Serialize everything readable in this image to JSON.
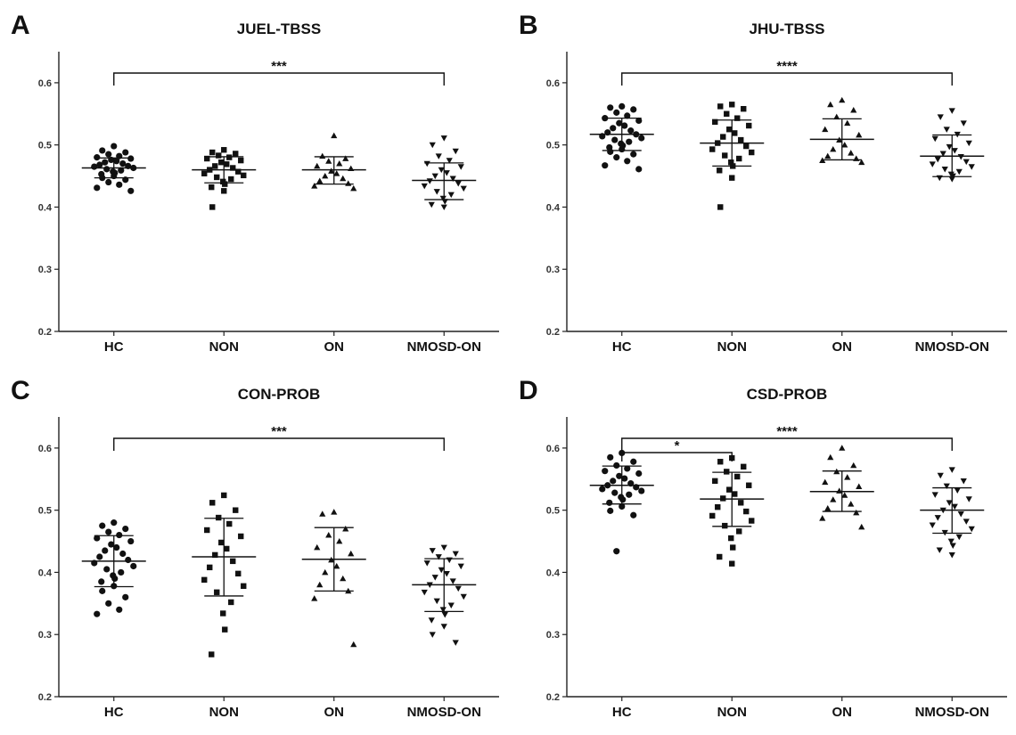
{
  "chart_data": [
    {
      "panel_letter": "A",
      "type": "scatter",
      "title": "JUEL-TBSS",
      "xlabel": "",
      "ylabel": "",
      "ylim": [
        0.2,
        0.65
      ],
      "yticks": [
        "0.2",
        "0.3",
        "0.4",
        "0.5",
        "0.6"
      ],
      "categories": [
        "HC",
        "NON",
        "ON",
        "NMOSD-ON"
      ],
      "markers": [
        "circle",
        "square",
        "triangle",
        "triangle-down"
      ],
      "groups": [
        {
          "name": "HC",
          "mean": 0.463,
          "sd_low": 0.447,
          "sd_high": 0.479,
          "values": [
            0.498,
            0.491,
            0.488,
            0.485,
            0.482,
            0.48,
            0.478,
            0.476,
            0.474,
            0.472,
            0.47,
            0.468,
            0.466,
            0.465,
            0.463,
            0.461,
            0.459,
            0.457,
            0.455,
            0.453,
            0.45,
            0.447,
            0.444,
            0.44,
            0.436,
            0.431,
            0.426
          ]
        },
        {
          "name": "NON",
          "mean": 0.46,
          "sd_low": 0.439,
          "sd_high": 0.481,
          "values": [
            0.492,
            0.488,
            0.486,
            0.483,
            0.48,
            0.478,
            0.475,
            0.472,
            0.469,
            0.466,
            0.463,
            0.46,
            0.457,
            0.454,
            0.451,
            0.448,
            0.445,
            0.441,
            0.437,
            0.432,
            0.426,
            0.4
          ]
        },
        {
          "name": "ON",
          "mean": 0.46,
          "sd_low": 0.437,
          "sd_high": 0.481,
          "values": [
            0.515,
            0.482,
            0.478,
            0.474,
            0.47,
            0.466,
            0.462,
            0.458,
            0.454,
            0.45,
            0.446,
            0.442,
            0.438,
            0.434,
            0.43
          ]
        },
        {
          "name": "NMOSD-ON",
          "mean": 0.443,
          "sd_low": 0.412,
          "sd_high": 0.471,
          "values": [
            0.511,
            0.5,
            0.49,
            0.482,
            0.475,
            0.47,
            0.465,
            0.46,
            0.455,
            0.45,
            0.446,
            0.442,
            0.438,
            0.434,
            0.43,
            0.425,
            0.42,
            0.414,
            0.409,
            0.404,
            0.4
          ]
        }
      ],
      "brackets": [
        {
          "from": "HC",
          "to": "NMOSD-ON",
          "label": "***"
        }
      ]
    },
    {
      "panel_letter": "B",
      "type": "scatter",
      "title": "JHU-TBSS",
      "xlabel": "",
      "ylabel": "",
      "ylim": [
        0.2,
        0.65
      ],
      "yticks": [
        "0.2",
        "0.3",
        "0.4",
        "0.5",
        "0.6"
      ],
      "categories": [
        "HC",
        "NON",
        "ON",
        "NMOSD-ON"
      ],
      "markers": [
        "circle",
        "square",
        "triangle",
        "triangle-down"
      ],
      "groups": [
        {
          "name": "HC",
          "mean": 0.517,
          "sd_low": 0.491,
          "sd_high": 0.543,
          "values": [
            0.562,
            0.56,
            0.557,
            0.552,
            0.547,
            0.543,
            0.539,
            0.535,
            0.531,
            0.527,
            0.523,
            0.52,
            0.517,
            0.514,
            0.511,
            0.508,
            0.505,
            0.502,
            0.499,
            0.496,
            0.493,
            0.489,
            0.485,
            0.48,
            0.474,
            0.467,
            0.461
          ]
        },
        {
          "name": "NON",
          "mean": 0.503,
          "sd_low": 0.466,
          "sd_high": 0.54,
          "values": [
            0.565,
            0.562,
            0.558,
            0.55,
            0.543,
            0.537,
            0.531,
            0.525,
            0.519,
            0.513,
            0.508,
            0.503,
            0.498,
            0.493,
            0.488,
            0.483,
            0.478,
            0.472,
            0.466,
            0.459,
            0.447,
            0.4
          ]
        },
        {
          "name": "ON",
          "mean": 0.509,
          "sd_low": 0.476,
          "sd_high": 0.542,
          "values": [
            0.572,
            0.565,
            0.556,
            0.545,
            0.535,
            0.525,
            0.516,
            0.508,
            0.5,
            0.493,
            0.487,
            0.482,
            0.478,
            0.475,
            0.472
          ]
        },
        {
          "name": "NMOSD-ON",
          "mean": 0.482,
          "sd_low": 0.449,
          "sd_high": 0.516,
          "values": [
            0.555,
            0.545,
            0.535,
            0.525,
            0.517,
            0.51,
            0.503,
            0.497,
            0.491,
            0.486,
            0.481,
            0.477,
            0.473,
            0.469,
            0.465,
            0.461,
            0.457,
            0.453,
            0.45,
            0.447,
            0.445
          ]
        }
      ],
      "brackets": [
        {
          "from": "HC",
          "to": "NMOSD-ON",
          "label": "****"
        }
      ]
    },
    {
      "panel_letter": "C",
      "type": "scatter",
      "title": "CON-PROB",
      "xlabel": "",
      "ylabel": "",
      "ylim": [
        0.2,
        0.65
      ],
      "yticks": [
        "0.2",
        "0.3",
        "0.4",
        "0.5",
        "0.6"
      ],
      "categories": [
        "HC",
        "NON",
        "ON",
        "NMOSD-ON"
      ],
      "markers": [
        "circle",
        "square",
        "triangle",
        "triangle-down"
      ],
      "groups": [
        {
          "name": "HC",
          "mean": 0.418,
          "sd_low": 0.377,
          "sd_high": 0.459,
          "values": [
            0.48,
            0.475,
            0.47,
            0.465,
            0.46,
            0.455,
            0.45,
            0.445,
            0.44,
            0.435,
            0.43,
            0.425,
            0.42,
            0.415,
            0.41,
            0.405,
            0.4,
            0.395,
            0.39,
            0.385,
            0.378,
            0.37,
            0.36,
            0.35,
            0.34,
            0.333
          ]
        },
        {
          "name": "NON",
          "mean": 0.425,
          "sd_low": 0.362,
          "sd_high": 0.487,
          "values": [
            0.524,
            0.512,
            0.5,
            0.488,
            0.478,
            0.468,
            0.458,
            0.448,
            0.438,
            0.428,
            0.418,
            0.408,
            0.398,
            0.388,
            0.378,
            0.368,
            0.352,
            0.334,
            0.308,
            0.268
          ]
        },
        {
          "name": "ON",
          "mean": 0.421,
          "sd_low": 0.37,
          "sd_high": 0.472,
          "values": [
            0.497,
            0.494,
            0.47,
            0.46,
            0.45,
            0.44,
            0.43,
            0.42,
            0.41,
            0.4,
            0.39,
            0.38,
            0.37,
            0.358,
            0.284
          ]
        },
        {
          "name": "NMOSD-ON",
          "mean": 0.38,
          "sd_low": 0.337,
          "sd_high": 0.422,
          "values": [
            0.44,
            0.435,
            0.43,
            0.425,
            0.42,
            0.415,
            0.41,
            0.404,
            0.398,
            0.392,
            0.386,
            0.38,
            0.374,
            0.368,
            0.361,
            0.354,
            0.347,
            0.34,
            0.332,
            0.323,
            0.313,
            0.3,
            0.287
          ]
        }
      ],
      "brackets": [
        {
          "from": "HC",
          "to": "NMOSD-ON",
          "label": "***"
        }
      ]
    },
    {
      "panel_letter": "D",
      "type": "scatter",
      "title": "CSD-PROB",
      "xlabel": "",
      "ylabel": "",
      "ylim": [
        0.2,
        0.65
      ],
      "yticks": [
        "0.2",
        "0.3",
        "0.4",
        "0.5",
        "0.6"
      ],
      "categories": [
        "HC",
        "NON",
        "ON",
        "NMOSD-ON"
      ],
      "markers": [
        "circle",
        "square",
        "triangle",
        "triangle-down"
      ],
      "groups": [
        {
          "name": "HC",
          "mean": 0.54,
          "sd_low": 0.51,
          "sd_high": 0.571,
          "values": [
            0.592,
            0.585,
            0.578,
            0.572,
            0.567,
            0.563,
            0.559,
            0.555,
            0.551,
            0.547,
            0.543,
            0.54,
            0.537,
            0.534,
            0.531,
            0.528,
            0.525,
            0.521,
            0.517,
            0.512,
            0.506,
            0.499,
            0.492,
            0.434
          ]
        },
        {
          "name": "NON",
          "mean": 0.518,
          "sd_low": 0.474,
          "sd_high": 0.561,
          "values": [
            0.584,
            0.578,
            0.57,
            0.562,
            0.554,
            0.547,
            0.54,
            0.533,
            0.526,
            0.519,
            0.512,
            0.505,
            0.498,
            0.491,
            0.483,
            0.475,
            0.466,
            0.455,
            0.44,
            0.425,
            0.414
          ]
        },
        {
          "name": "ON",
          "mean": 0.53,
          "sd_low": 0.498,
          "sd_high": 0.563,
          "values": [
            0.6,
            0.585,
            0.572,
            0.562,
            0.553,
            0.545,
            0.538,
            0.531,
            0.524,
            0.517,
            0.51,
            0.503,
            0.496,
            0.487,
            0.473
          ]
        },
        {
          "name": "NMOSD-ON",
          "mean": 0.5,
          "sd_low": 0.463,
          "sd_high": 0.536,
          "values": [
            0.565,
            0.556,
            0.547,
            0.539,
            0.532,
            0.525,
            0.518,
            0.512,
            0.506,
            0.5,
            0.494,
            0.488,
            0.482,
            0.476,
            0.47,
            0.464,
            0.457,
            0.45,
            0.443,
            0.436,
            0.428
          ]
        }
      ],
      "brackets": [
        {
          "from": "HC",
          "to": "NMOSD-ON",
          "label": "****"
        },
        {
          "from": "HC",
          "to": "NON",
          "label": "*"
        }
      ]
    }
  ]
}
